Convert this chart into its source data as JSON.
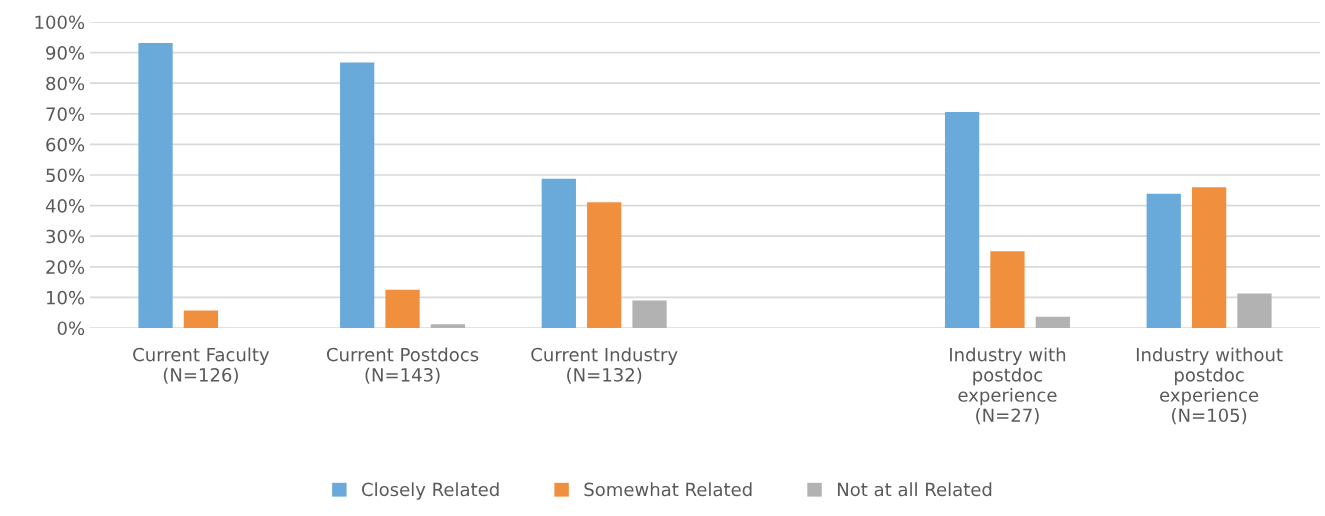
{
  "chart_data": {
    "type": "bar",
    "categories": [
      "Current Faculty\n(N=126)",
      "Current Postdocs\n(N=143)",
      "Current Industry\n(N=132)",
      null,
      "Industry with\npostdoc\nexperience\n(N=27)",
      "Industry without\npostdoc\nexperience\n(N=105)"
    ],
    "series": [
      {
        "name": "Closely Related",
        "color": "#6aaadb",
        "values": [
          93.1,
          86.8,
          48.8,
          null,
          70.6,
          43.9
        ]
      },
      {
        "name": "Somewhat Related",
        "color": "#f0903f",
        "values": [
          5.7,
          12.5,
          41.1,
          null,
          25.1,
          46.0
        ]
      },
      {
        "name": "Not at all Related",
        "color": "#b2b2b2",
        "values": [
          0,
          1.2,
          9.0,
          null,
          3.7,
          11.3
        ]
      }
    ],
    "ylim": [
      0,
      100
    ],
    "yticks": [
      {
        "value": 0,
        "label": "0%"
      },
      {
        "value": 10,
        "label": "10%"
      },
      {
        "value": 20,
        "label": "20%"
      },
      {
        "value": 30,
        "label": "30%"
      },
      {
        "value": 40,
        "label": "40%"
      },
      {
        "value": 50,
        "label": "50%"
      },
      {
        "value": 60,
        "label": "60%"
      },
      {
        "value": 70,
        "label": "70%"
      },
      {
        "value": 80,
        "label": "80%"
      },
      {
        "value": 90,
        "label": "90%"
      },
      {
        "value": 100,
        "label": "100%"
      }
    ],
    "grid": "y",
    "legend": "bottom"
  }
}
